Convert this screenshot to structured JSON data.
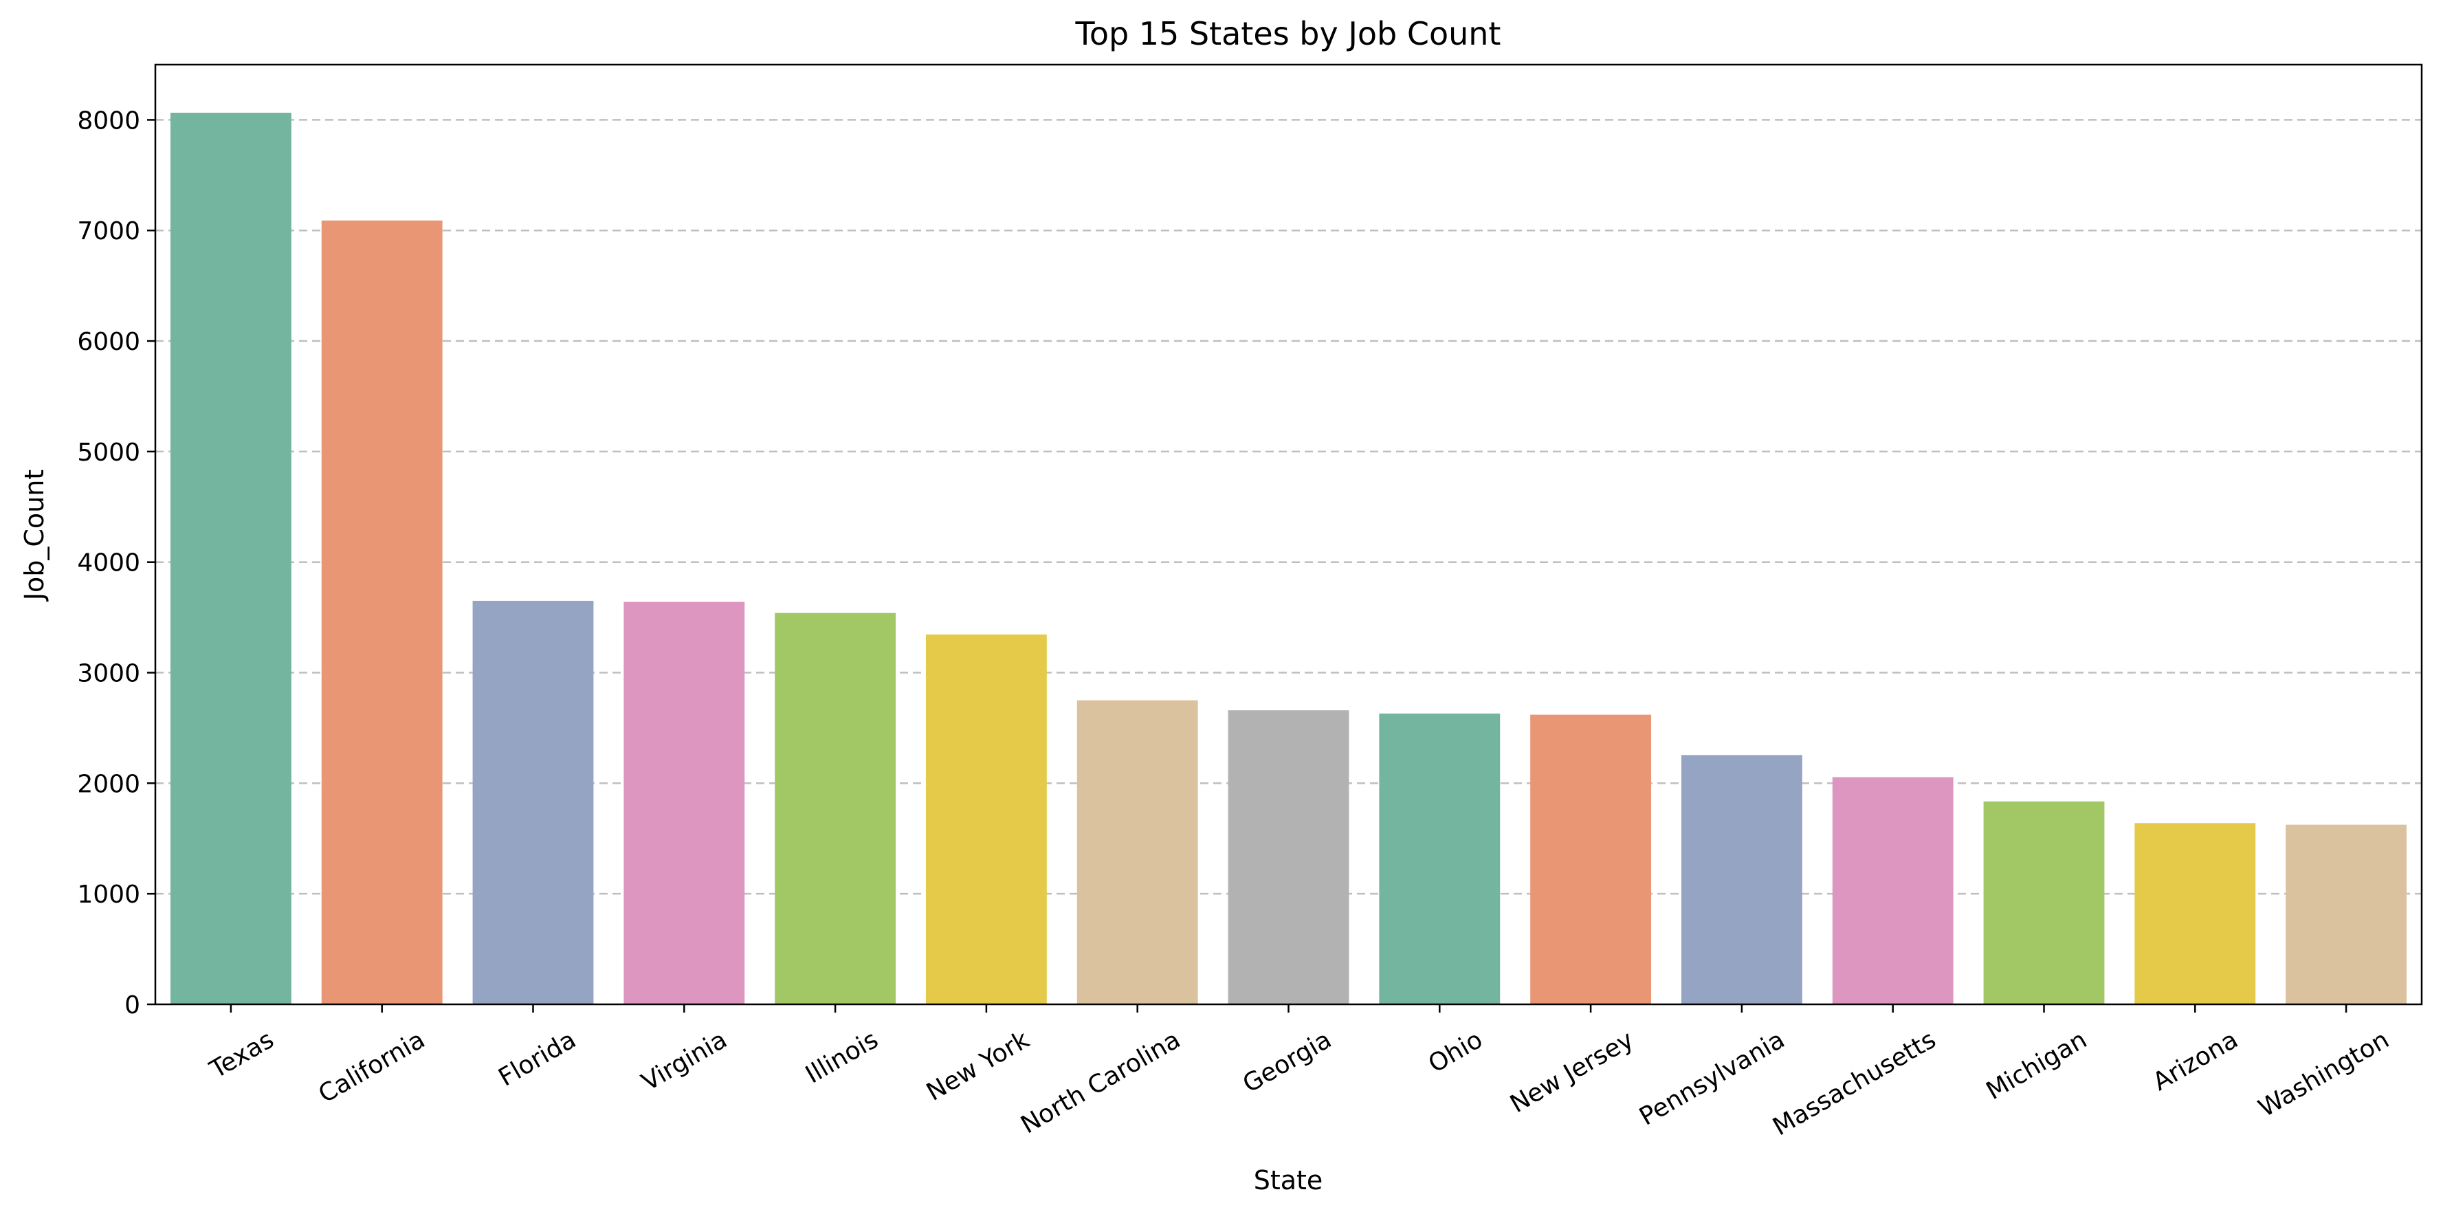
{
  "chart_data": {
    "type": "bar",
    "title": "Top 15 States by Job Count",
    "xlabel": "State",
    "ylabel": "Job_Count",
    "categories": [
      "Texas",
      "California",
      "Florida",
      "Virginia",
      "Illinois",
      "New York",
      "North Carolina",
      "Georgia",
      "Ohio",
      "New Jersey",
      "Pennsylvania",
      "Massachusetts",
      "Michigan",
      "Arizona",
      "Washington"
    ],
    "values": [
      8065,
      7090,
      3650,
      3640,
      3540,
      3345,
      2750,
      2660,
      2630,
      2620,
      2255,
      2055,
      1835,
      1640,
      1625
    ],
    "colors": [
      "#73b59f",
      "#e89674",
      "#95a4c2",
      "#dc96c0",
      "#a2c866",
      "#e5ca4a",
      "#dbc29e",
      "#b2b2b2",
      "#73b59f",
      "#e89674",
      "#95a4c2",
      "#dc96c0",
      "#a2c866",
      "#e5ca4a",
      "#dbc29e"
    ],
    "ylim": [
      0,
      8500
    ],
    "yticks": [
      0,
      1000,
      2000,
      3000,
      4000,
      5000,
      6000,
      7000,
      8000
    ],
    "grid": "y-dashed",
    "legend": "none"
  }
}
